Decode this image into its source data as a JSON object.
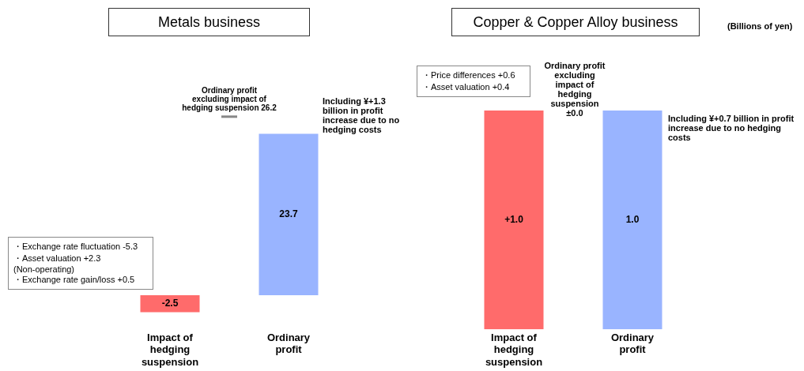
{
  "chart_data": [
    {
      "type": "bar",
      "title": "Metals business",
      "categories": [
        "Impact of hedging suspension",
        "Ordinary profit"
      ],
      "values": [
        -2.5,
        23.7
      ],
      "colors": [
        "#ff6b6b",
        "#99b4ff"
      ],
      "value_labels": [
        "-2.5",
        "23.7"
      ],
      "tick_labels": "x",
      "grid": false,
      "legend": false,
      "ref_lines": [
        {
          "axis": "y",
          "value": 26.2,
          "label": "Ordinary profit excluding impact of hedging suspension 26.2",
          "color": "#888888"
        }
      ],
      "annotations": [
        "・Exchange rate fluctuation -5.3\n・Asset valuation +2.3\n(Non-operating)\n・Exchange rate gain/loss +0.5",
        "Including ¥+1.3 billion in profit increase due to no hedging costs"
      ]
    },
    {
      "type": "bar",
      "title": "Copper & Copper Alloy business",
      "categories": [
        "Impact of hedging suspension",
        "Ordinary profit"
      ],
      "values": [
        1.0,
        1.0
      ],
      "colors": [
        "#ff6b6b",
        "#99b4ff"
      ],
      "value_labels": [
        "+1.0",
        "1.0"
      ],
      "ylim": [
        0,
        1.0
      ],
      "tick_labels": "x",
      "grid": false,
      "legend": false,
      "annotations": [
        "・Price differences +0.6\n・Asset valuation +0.4",
        "Ordinary profit excluding impact of hedging suspension ±0.0",
        "Including ¥+0.7 billion in profit increase due to no hedging costs",
        "(Billions of yen)"
      ]
    }
  ]
}
